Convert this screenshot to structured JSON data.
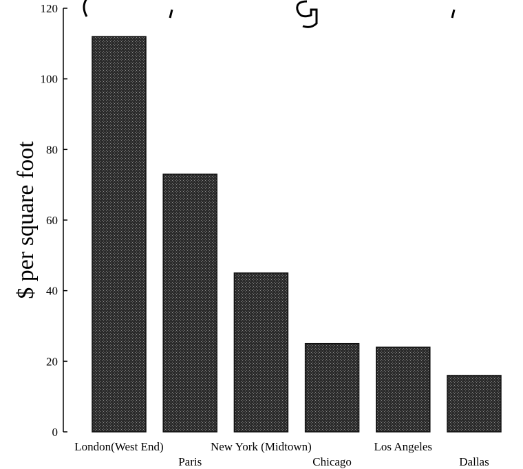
{
  "chart_data": {
    "type": "bar",
    "title": "",
    "xlabel": "",
    "ylabel": "$ per square foot",
    "ylim": [
      0,
      120
    ],
    "yticks": [
      0,
      20,
      40,
      60,
      80,
      100,
      120
    ],
    "grid": false,
    "legend": "none",
    "bar_color": "#2b2b2b",
    "categories": [
      "London(West End)",
      "Paris",
      "New York (Midtown)",
      "Chicago",
      "Los Angeles",
      "Dallas"
    ],
    "values": [
      112,
      73,
      45,
      25,
      24,
      16
    ]
  }
}
